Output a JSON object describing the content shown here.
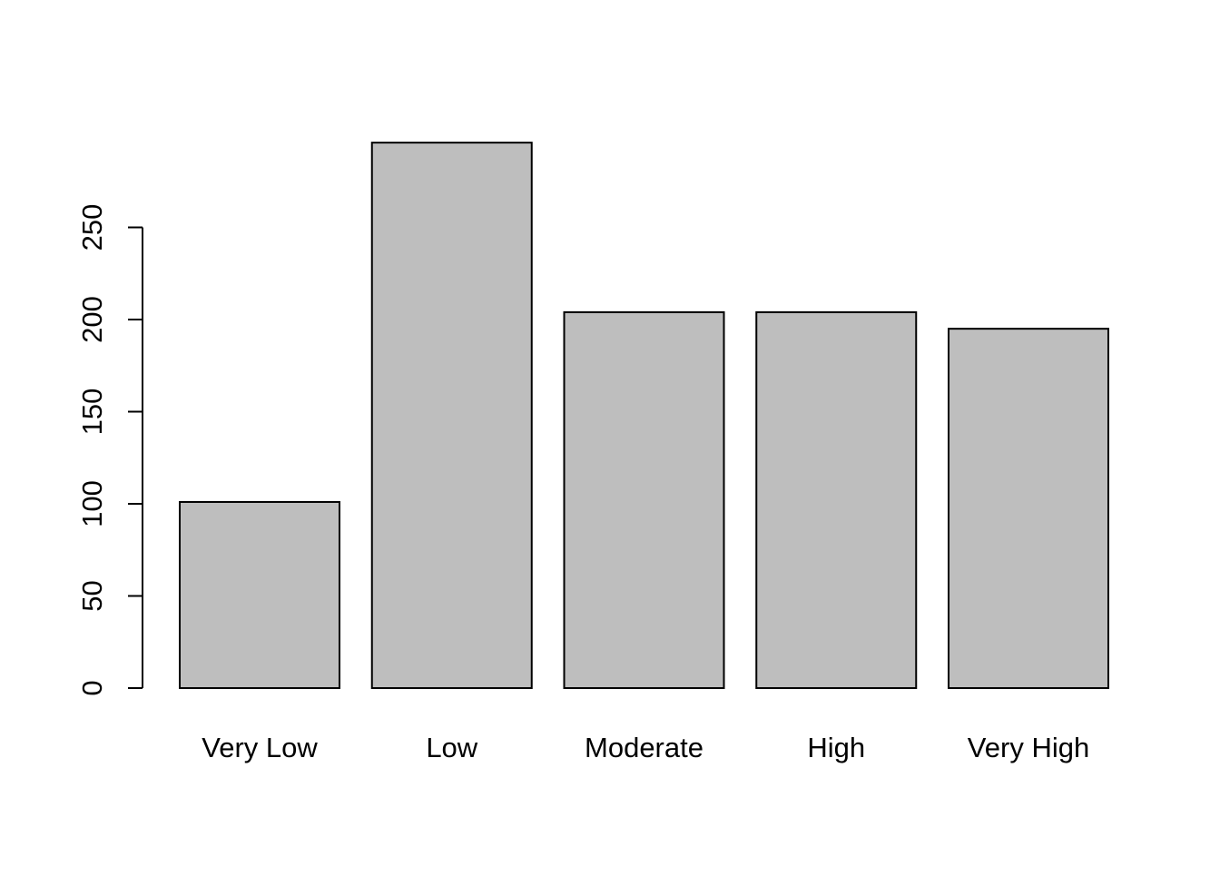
{
  "chart_data": {
    "type": "bar",
    "categories": [
      "Very Low",
      "Low",
      "Moderate",
      "High",
      "Very High"
    ],
    "values": [
      101,
      296,
      204,
      204,
      195
    ],
    "ylim": [
      0,
      296
    ],
    "yticks": [
      0,
      50,
      100,
      150,
      200,
      250
    ],
    "title": "",
    "xlabel": "",
    "ylabel": "",
    "grid": false,
    "bar_fill": "#bebebe",
    "bar_stroke": "#000000"
  }
}
